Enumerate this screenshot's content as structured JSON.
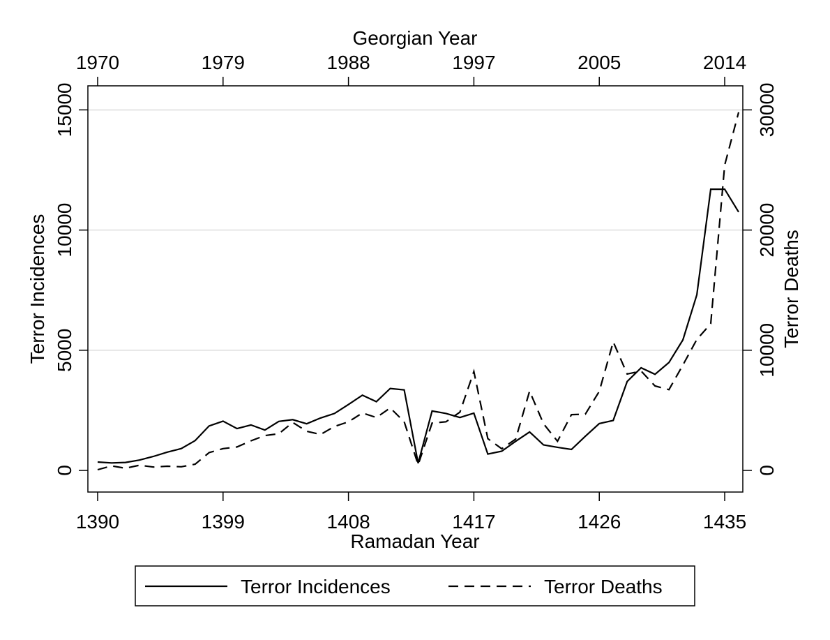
{
  "chart_data": {
    "type": "line",
    "top_axis_title": "Georgian Year",
    "xlabel": "Ramadan Year",
    "ylabel": "Terror Incidences",
    "y2label": "Terror Deaths",
    "xlim": [
      1389.3,
      1436.3
    ],
    "ylim": [
      -900,
      16000
    ],
    "y2lim": [
      -1800,
      32000
    ],
    "x_ticks": [
      1390,
      1399,
      1408,
      1417,
      1426,
      1435
    ],
    "x_tick_labels": [
      "1390",
      "1399",
      "1408",
      "1417",
      "1426",
      "1435"
    ],
    "top_ticks": [
      1390,
      1399,
      1408,
      1417,
      1426,
      1435
    ],
    "top_tick_labels": [
      "1970",
      "1979",
      "1988",
      "1997",
      "2005",
      "2014"
    ],
    "y_ticks": [
      0,
      5000,
      10000,
      15000
    ],
    "y_tick_labels": [
      "0",
      "5000",
      "10000",
      "15000"
    ],
    "y2_ticks": [
      0,
      10000,
      20000,
      30000
    ],
    "y2_tick_labels": [
      "0",
      "10000",
      "20000",
      "30000"
    ],
    "grid": true,
    "legend_position": "bottom",
    "series": [
      {
        "name": "Terror Incidences",
        "axis": "left",
        "style": "solid",
        "color": "#000000",
        "x": [
          1390,
          1391,
          1392,
          1393,
          1394,
          1395,
          1396,
          1397,
          1398,
          1399,
          1400,
          1401,
          1402,
          1403,
          1404,
          1405,
          1406,
          1407,
          1408,
          1409,
          1410,
          1411,
          1412,
          1413,
          1414,
          1415,
          1416,
          1417,
          1418,
          1419,
          1420,
          1421,
          1422,
          1423,
          1424,
          1425,
          1426,
          1427,
          1428,
          1429,
          1430,
          1431,
          1432,
          1433,
          1434,
          1435,
          1436
        ],
        "values": [
          350,
          310,
          330,
          430,
          580,
          760,
          910,
          1240,
          1850,
          2050,
          1740,
          1890,
          1680,
          2040,
          2110,
          1940,
          2180,
          2370,
          2740,
          3130,
          2860,
          3410,
          3350,
          300,
          2470,
          2370,
          2200,
          2380,
          680,
          800,
          1210,
          1600,
          1060,
          960,
          870,
          1420,
          1950,
          2080,
          3700,
          4270,
          4000,
          4490,
          5430,
          7310,
          11700,
          11700,
          10750
        ]
      },
      {
        "name": "Terror Deaths",
        "axis": "right",
        "style": "dashed",
        "color": "#000000",
        "x": [
          1390,
          1391,
          1392,
          1393,
          1394,
          1395,
          1396,
          1397,
          1398,
          1399,
          1400,
          1401,
          1402,
          1403,
          1404,
          1405,
          1406,
          1407,
          1408,
          1409,
          1410,
          1411,
          1412,
          1413,
          1414,
          1415,
          1416,
          1417,
          1418,
          1419,
          1420,
          1421,
          1422,
          1423,
          1424,
          1425,
          1426,
          1427,
          1428,
          1429,
          1430,
          1431,
          1432,
          1433,
          1434,
          1435,
          1436
        ],
        "values": [
          60,
          370,
          180,
          430,
          280,
          350,
          300,
          520,
          1480,
          1810,
          1950,
          2460,
          2900,
          3050,
          3990,
          3260,
          2990,
          3660,
          4040,
          4780,
          4400,
          5200,
          4050,
          470,
          3940,
          4050,
          4850,
          8230,
          2640,
          1800,
          2600,
          6600,
          3880,
          2430,
          4640,
          4680,
          6580,
          10700,
          8020,
          8270,
          7030,
          6720,
          8770,
          10900,
          12200,
          25400,
          29800
        ]
      }
    ]
  }
}
